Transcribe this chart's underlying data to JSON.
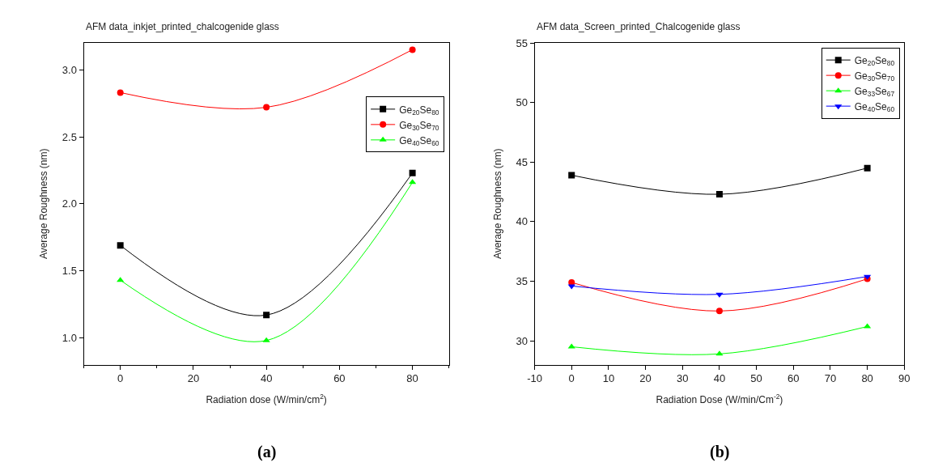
{
  "chart_data": [
    {
      "type": "line",
      "title": "AFM data_inkjet_printed_chalcogenide glass",
      "xlabel": "Radiation dose (W/min/cm$^{2}$)",
      "ylabel": "Average Roughness (nm)",
      "x": [
        0,
        40,
        80
      ],
      "xlim": [
        -10,
        90
      ],
      "xticks": [
        0,
        20,
        40,
        60,
        80
      ],
      "ylim": [
        0.8,
        3.2
      ],
      "yticks": [
        {
          "value": 1,
          "label": "1.0"
        },
        1.5,
        {
          "value": 2,
          "label": "2.0"
        },
        2.5,
        {
          "value": 3,
          "label": "3.0"
        }
      ],
      "legend": "top right",
      "annotations": [
        "(a)"
      ],
      "series": [
        {
          "name": "Ge$_{20}$Se$_{80}$",
          "color": "#000000",
          "marker": "square",
          "values": [
            1.69,
            1.17,
            2.23
          ]
        },
        {
          "name": "Ge$_{30}$Se$_{70}$",
          "color": "#ff0000",
          "marker": "circle",
          "values": [
            2.83,
            2.72,
            3.15
          ]
        },
        {
          "name": "Ge$_{40}$Se$_{60}$",
          "color": "#00ff00",
          "marker": "triangle",
          "values": [
            1.43,
            0.98,
            2.16
          ]
        }
      ]
    },
    {
      "type": "line",
      "title": "AFM data_Screen_printed_Chalcogenide glass",
      "xlabel": "Radiation Dose (W/min/Cm$^{-2}$)",
      "ylabel": "Average Roughness (nm)",
      "x": [
        0,
        40,
        80
      ],
      "xlim": [
        -10,
        90
      ],
      "xticks": [
        -10,
        0,
        10,
        20,
        30,
        40,
        50,
        60,
        70,
        80,
        90
      ],
      "ylim": [
        28,
        55
      ],
      "yticks": [
        30,
        35,
        40,
        45,
        50,
        55
      ],
      "legend": "top right",
      "annotations": [
        "(b)"
      ],
      "series": [
        {
          "name": "Ge$_{20}$Se$_{80}$",
          "color": "#000000",
          "marker": "square",
          "values": [
            43.9,
            42.3,
            44.5
          ]
        },
        {
          "name": "Ge$_{30}$Se$_{70}$",
          "color": "#ff0000",
          "marker": "circle",
          "values": [
            34.9,
            32.5,
            35.2
          ]
        },
        {
          "name": "Ge$_{33}$Se$_{67}$",
          "color": "#00ff00",
          "marker": "triangle",
          "values": [
            29.5,
            28.9,
            31.2
          ]
        },
        {
          "name": "Ge$_{40}$Se$_{60}$",
          "color": "#0000ff",
          "marker": "triangle-down",
          "values": [
            34.6,
            33.9,
            35.4
          ]
        }
      ]
    }
  ]
}
